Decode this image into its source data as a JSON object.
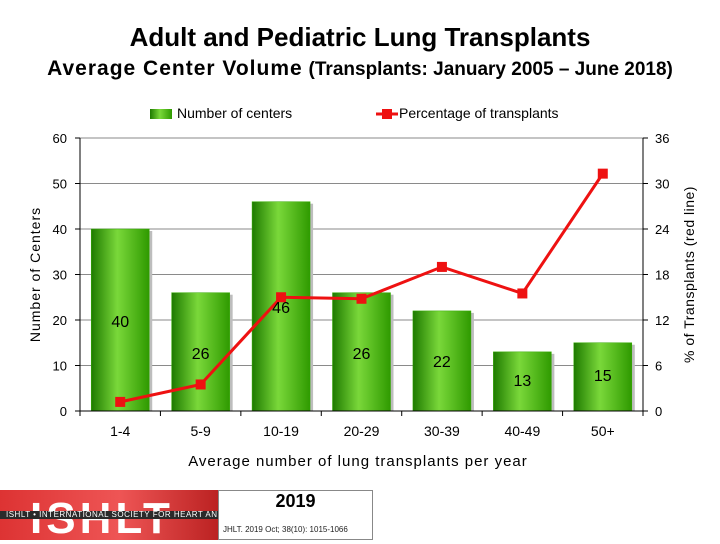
{
  "title": "Adult and Pediatric Lung Transplants",
  "subtitle_main": "Average Center Volume",
  "subtitle_paren": "(Transplants: January 2005 – June 2018)",
  "colors": {
    "bar": "#33aa00",
    "line": "#ee1111"
  },
  "chart_data": {
    "type": "bar",
    "title": "Average Center Volume",
    "xlabel": "Average number of lung transplants per year",
    "ylabel": "Number of Centers",
    "ylabel_right": "% of Transplants (red line)",
    "categories": [
      "1-4",
      "5-9",
      "10-19",
      "20-29",
      "30-39",
      "40-49",
      "50+"
    ],
    "series": [
      {
        "name": "Number of centers",
        "axis": "left",
        "kind": "bar",
        "values": [
          40,
          26,
          46,
          26,
          22,
          13,
          15
        ],
        "labels": [
          "40",
          "26",
          "46",
          "26",
          "22",
          "13",
          "15"
        ]
      },
      {
        "name": "Percentage of transplants",
        "axis": "right",
        "kind": "line",
        "values": [
          1.2,
          3.5,
          15,
          14.8,
          19,
          15.5,
          31.3
        ]
      }
    ],
    "ylim": [
      0,
      60
    ],
    "ylim_right": [
      0,
      36
    ],
    "yticks": [
      "0",
      "10",
      "20",
      "30",
      "40",
      "50",
      "60"
    ],
    "yticks_right": [
      "0",
      "6",
      "12",
      "18",
      "24",
      "30",
      "36"
    ],
    "grid": "horizontal",
    "legend": "top"
  },
  "footer": {
    "logo_text": "ISHLT",
    "logo_band": "ISHLT • INTERNATIONAL SOCIETY FOR HEART AND LUNG TRANSPLANTATION",
    "year": "2019",
    "citation": "JHLT. 2019 Oct; 38(10): 1015-1066"
  }
}
